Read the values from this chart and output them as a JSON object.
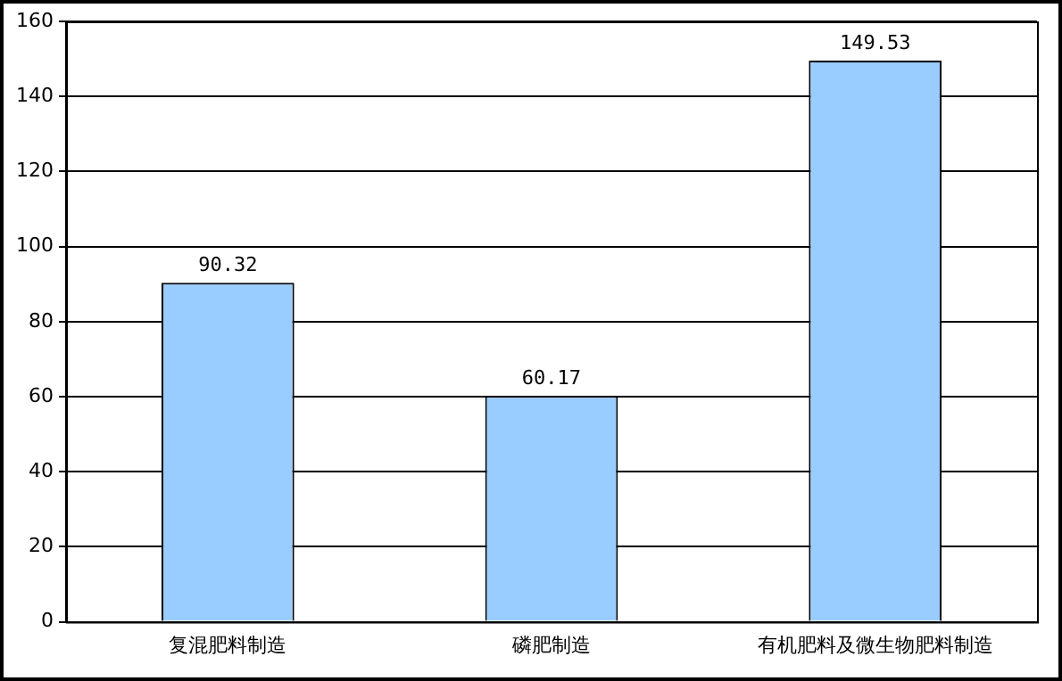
{
  "chart_data": {
    "type": "bar",
    "categories": [
      "复混肥料制造",
      "磷肥制造",
      "有机肥料及微生物肥料制造"
    ],
    "values": [
      90.32,
      60.17,
      149.53
    ],
    "color": "#99ccff",
    "ylim": [
      0,
      160
    ],
    "yticks": [
      0,
      20,
      40,
      60,
      80,
      100,
      120,
      140,
      160
    ],
    "grid": "y",
    "legend": false,
    "data_labels": true
  }
}
